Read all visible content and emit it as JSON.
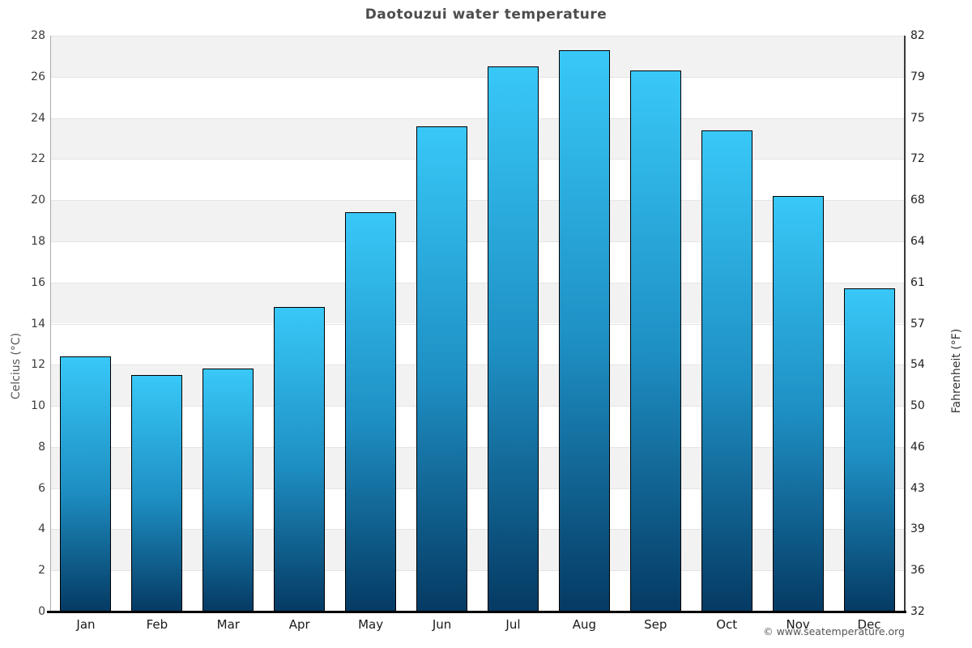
{
  "page": {
    "background": "#ffffff"
  },
  "header": {
    "title": "Daotouzui water temperature"
  },
  "footer": {
    "copyright": "© www.seatemperature.org"
  },
  "chart_data": {
    "type": "bar",
    "title": "Daotouzui water temperature",
    "categories": [
      "Jan",
      "Feb",
      "Mar",
      "Apr",
      "May",
      "Jun",
      "Jul",
      "Aug",
      "Sep",
      "Oct",
      "Nov",
      "Dec"
    ],
    "series": [
      {
        "name": "Water temperature (°C)",
        "values": [
          12.4,
          11.5,
          11.8,
          14.8,
          19.4,
          23.6,
          26.5,
          27.3,
          26.3,
          23.4,
          20.2,
          15.7
        ]
      }
    ],
    "ylabel_left": "Celcius (°C)",
    "ylabel_right": "Fahrenheit (°F)",
    "ylim_celsius": [
      0,
      28
    ],
    "yticks_celsius": [
      "0",
      "2",
      "4",
      "6",
      "8",
      "10",
      "12",
      "14",
      "16",
      "18",
      "20",
      "22",
      "24",
      "26",
      "28"
    ],
    "yticks_fahrenheit": [
      "32",
      "36",
      "39",
      "43",
      "46",
      "50",
      "54",
      "57",
      "61",
      "64",
      "68",
      "72",
      "75",
      "79",
      "82"
    ],
    "xlabel": "",
    "grid": "horizontal-bands-alternating",
    "legend": "none",
    "colors": {
      "bar_gradient_top": "#38c8f8",
      "bar_gradient_mid": "#1e8fc3",
      "bar_gradient_bottom": "#053a63",
      "bar_border": "#000000",
      "band_gray": "#f2f2f2",
      "band_white": "#ffffff",
      "gridline": "#e4e4e4",
      "axis_bottom": "#000000",
      "axis_left": "#aaaaaa",
      "axis_right": "#3a3a3a",
      "title_text": "#4d4d4d",
      "tick_text": "#3c3c3c",
      "month_text": "#1a1a1a",
      "copyright_text": "#555555"
    }
  }
}
